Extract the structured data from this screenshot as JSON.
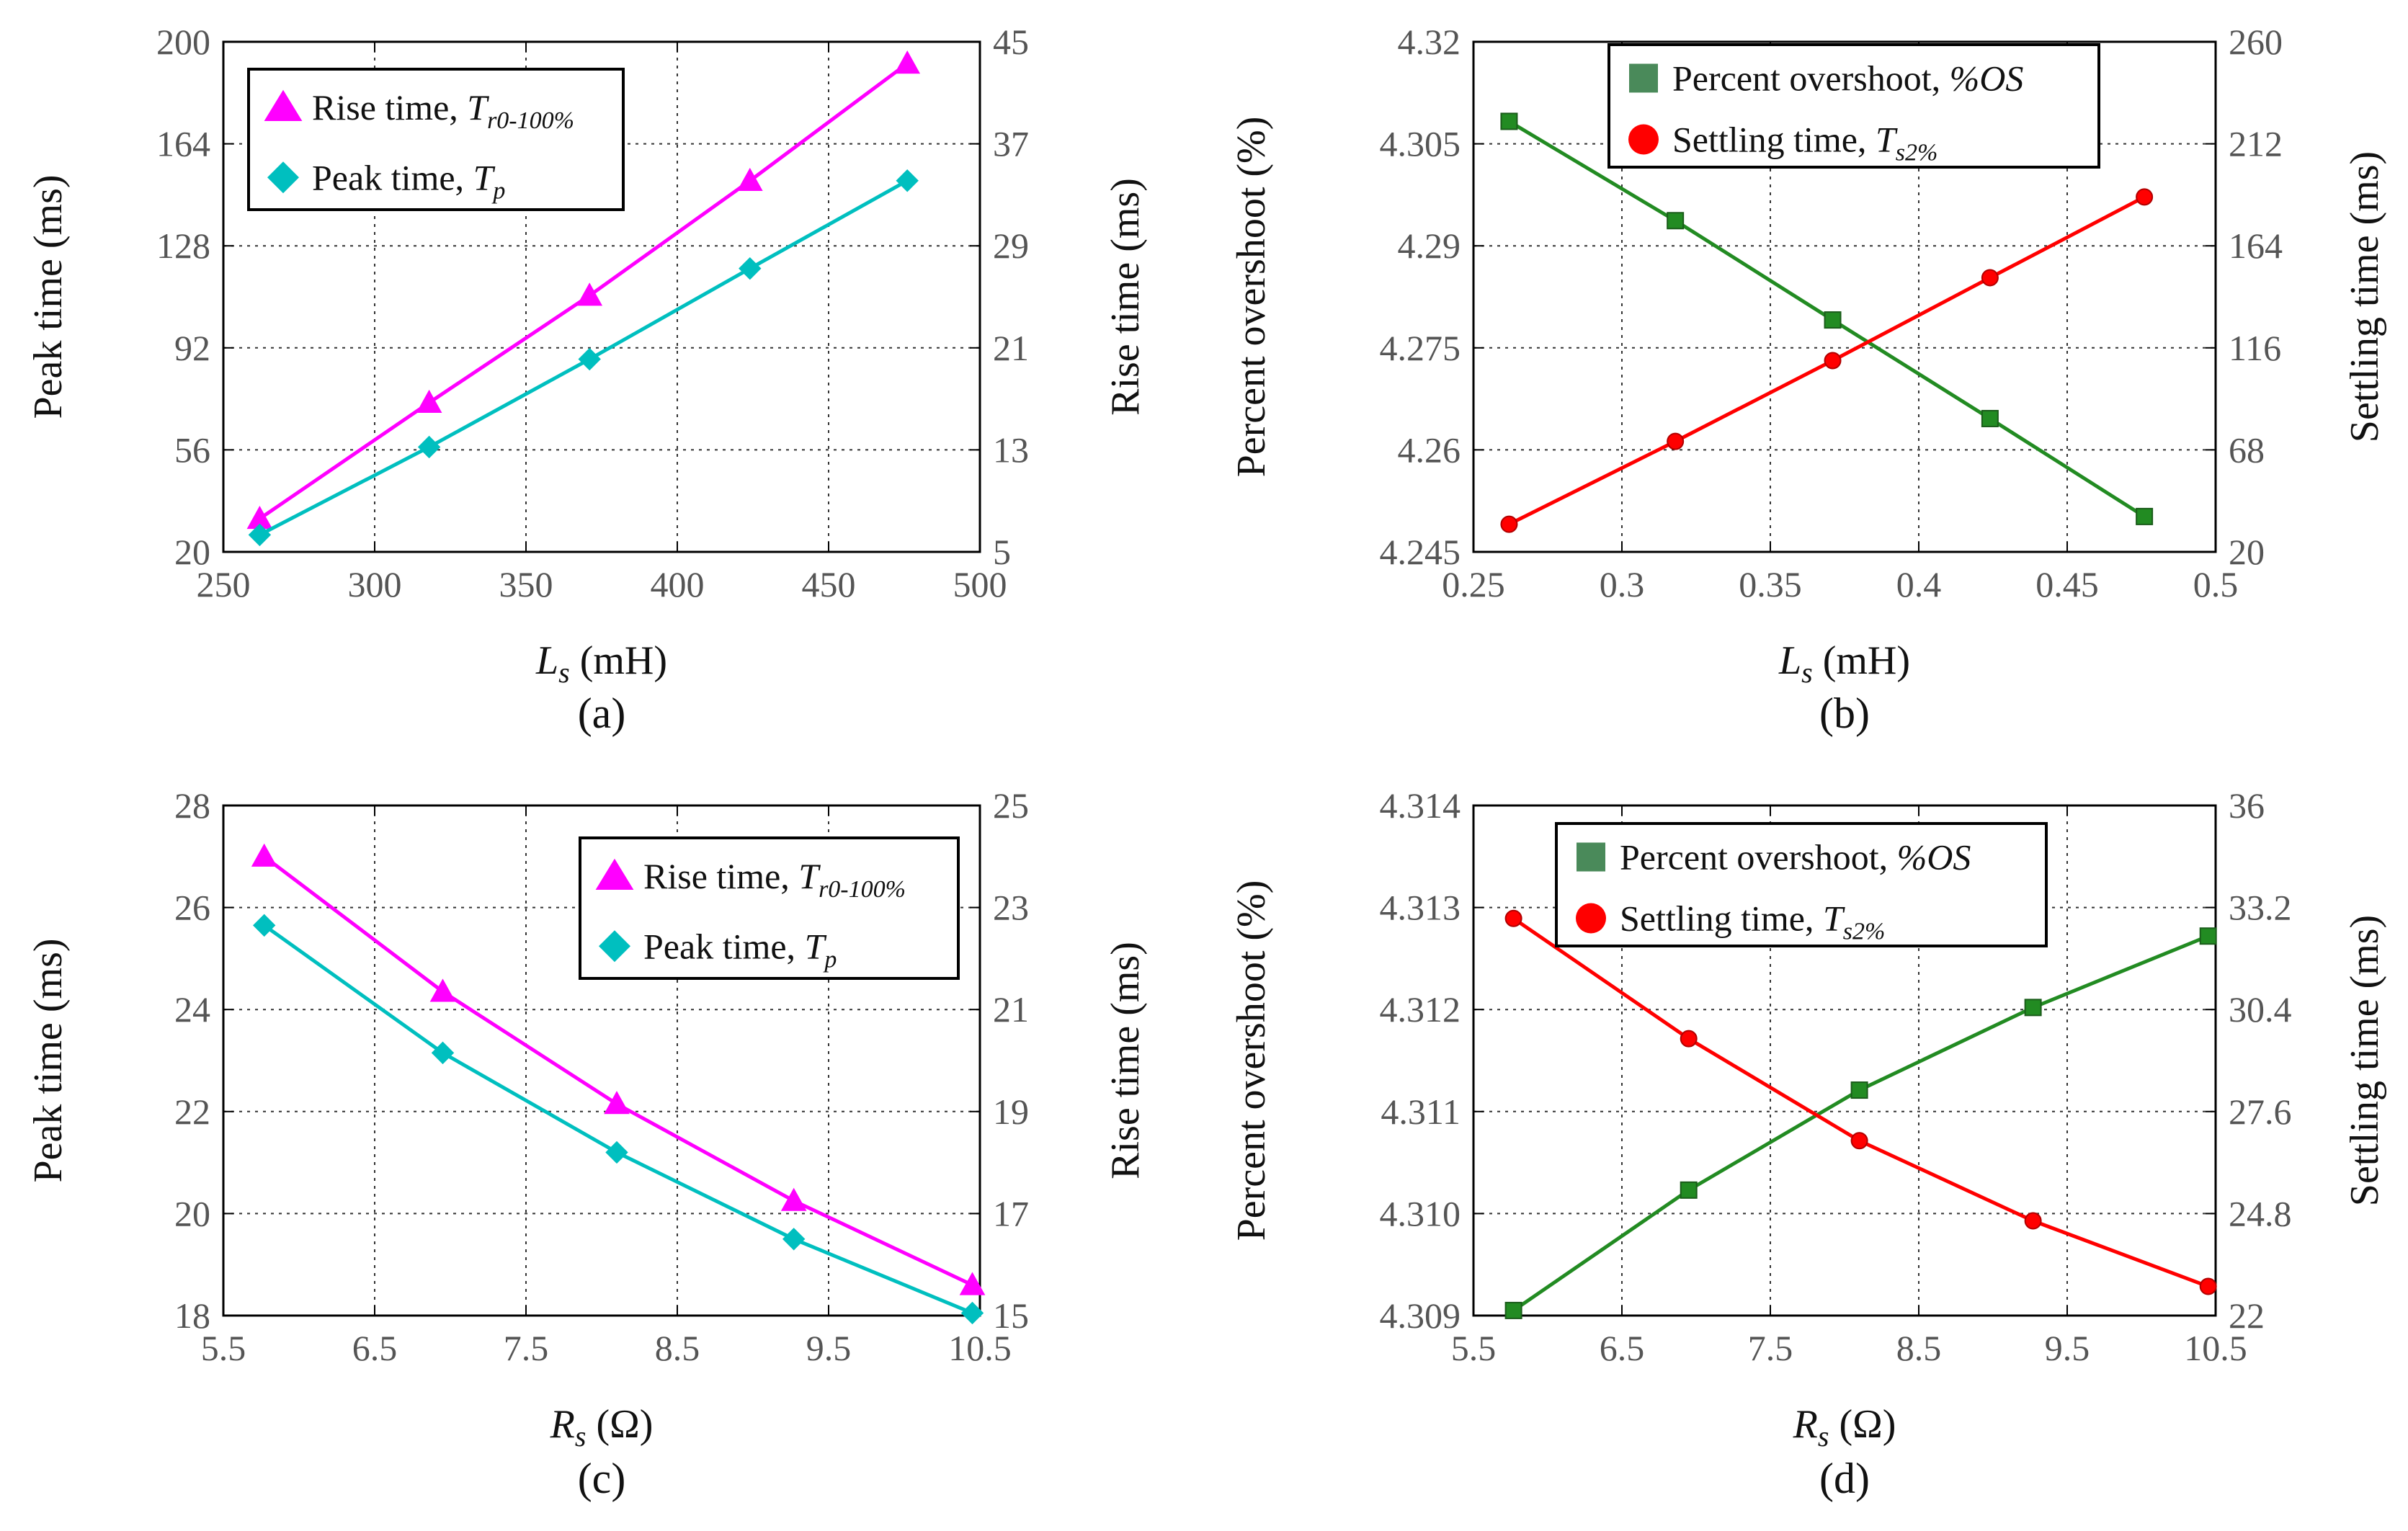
{
  "chart_data": [
    {
      "id": "a",
      "type": "line",
      "panel_label": "(a)",
      "xlabel": {
        "var": "L",
        "sub": "s",
        "unit": " (mH)"
      },
      "ylabel_left": "Peak time (ms)",
      "ylabel_right": "Rise time (ms)",
      "xlim": [
        250,
        500
      ],
      "xticks": [
        250,
        300,
        350,
        400,
        450,
        500
      ],
      "ylim_left": [
        20,
        200
      ],
      "yticks_left": [
        20,
        56,
        92,
        128,
        164,
        200
      ],
      "ylim_right": [
        5,
        45
      ],
      "yticks_right": [
        5,
        13,
        21,
        29,
        37,
        45
      ],
      "grid": true,
      "legend_position": "top-left",
      "series": [
        {
          "name": "Rise time,",
          "symbol": "T",
          "symbol_sub": "r0-100%",
          "axis": "right",
          "color": "#ff00ff",
          "marker": "triangle",
          "x": [
            262,
            318,
            371,
            424,
            476
          ],
          "values": [
            7.6,
            16.7,
            25.1,
            34.1,
            43.3
          ]
        },
        {
          "name": "Peak time,",
          "symbol": "T",
          "symbol_sub": "p",
          "axis": "left",
          "color": "#00bfbf",
          "marker": "diamond",
          "x": [
            262,
            318,
            371,
            424,
            476
          ],
          "values": [
            26,
            57,
            88,
            120,
            151
          ]
        }
      ]
    },
    {
      "id": "b",
      "type": "line",
      "panel_label": "(b)",
      "xlabel": {
        "var": "L",
        "sub": "s",
        "unit": " (mH)"
      },
      "ylabel_left": "Percent overshoot (%)",
      "ylabel_right": "Settling time (ms)",
      "xlim": [
        0.25,
        0.5
      ],
      "xticks": [
        0.25,
        0.3,
        0.35,
        0.4,
        0.45,
        0.5
      ],
      "xtick_labels": [
        "0.25",
        "0.3",
        "0.35",
        "0.4",
        "0.45",
        "0.5"
      ],
      "ylim_left": [
        4.245,
        4.32
      ],
      "yticks_left": [
        4.245,
        4.26,
        4.275,
        4.29,
        4.305,
        4.32
      ],
      "ytick_labels_left": [
        "4.245",
        "4.26",
        "4.275",
        "4.29",
        "4.305",
        "4.32"
      ],
      "ylim_right": [
        20,
        260
      ],
      "yticks_right": [
        20,
        68,
        116,
        164,
        212,
        260
      ],
      "grid": true,
      "legend_position": "top-center",
      "series": [
        {
          "name": "Percent overshoot,",
          "symbol": "%OS",
          "symbol_sub": "",
          "axis": "left",
          "color": "#228b22",
          "marker": "square",
          "x": [
            0.262,
            0.318,
            0.371,
            0.424,
            0.476
          ],
          "values": [
            4.3083,
            4.2937,
            4.2791,
            4.2646,
            4.2502
          ]
        },
        {
          "name": "Settling time,",
          "symbol": "T",
          "symbol_sub": "s2%",
          "axis": "right",
          "color": "#ff0000",
          "marker": "circle",
          "x": [
            0.262,
            0.318,
            0.371,
            0.424,
            0.476
          ],
          "values": [
            33,
            72,
            110,
            149,
            187
          ]
        }
      ]
    },
    {
      "id": "c",
      "type": "line",
      "panel_label": "(c)",
      "xlabel": {
        "var": "R",
        "sub": "s",
        "unit": " (Ω)"
      },
      "ylabel_left": "Peak time (ms)",
      "ylabel_right": "Rise time (ms)",
      "xlim": [
        5.5,
        10.5
      ],
      "xticks": [
        5.5,
        6.5,
        7.5,
        8.5,
        9.5,
        10.5
      ],
      "xtick_labels": [
        "5.5",
        "6.5",
        "7.5",
        "8.5",
        "9.5",
        "10.5"
      ],
      "ylim_left": [
        18,
        28
      ],
      "yticks_left": [
        18,
        20,
        22,
        24,
        26,
        28
      ],
      "ylim_right": [
        15,
        25
      ],
      "yticks_right": [
        15,
        17,
        19,
        21,
        23,
        25
      ],
      "grid": true,
      "legend_position": "top-right",
      "series": [
        {
          "name": "Rise time,",
          "symbol": "T",
          "symbol_sub": "r0-100%",
          "axis": "right",
          "color": "#ff00ff",
          "marker": "triangle",
          "x": [
            5.77,
            6.95,
            8.1,
            9.27,
            10.45
          ],
          "values": [
            24.0,
            21.35,
            19.15,
            17.25,
            15.6
          ]
        },
        {
          "name": "Peak time,",
          "symbol": "T",
          "symbol_sub": "p",
          "axis": "left",
          "color": "#00bfbf",
          "marker": "diamond",
          "x": [
            5.77,
            6.95,
            8.1,
            9.27,
            10.45
          ],
          "values": [
            25.65,
            23.15,
            21.2,
            19.5,
            18.05
          ]
        }
      ]
    },
    {
      "id": "d",
      "type": "line",
      "panel_label": "(d)",
      "xlabel": {
        "var": "R",
        "sub": "s",
        "unit": " (Ω)"
      },
      "ylabel_left": "Percent overshoot (%)",
      "ylabel_right": "Settling time (ms)",
      "xlim": [
        5.5,
        10.5
      ],
      "xticks": [
        5.5,
        6.5,
        7.5,
        8.5,
        9.5,
        10.5
      ],
      "xtick_labels": [
        "5.5",
        "6.5",
        "7.5",
        "8.5",
        "9.5",
        "10.5"
      ],
      "ylim_left": [
        4.309,
        4.314
      ],
      "yticks_left": [
        4.309,
        4.31,
        4.311,
        4.312,
        4.313,
        4.314
      ],
      "ytick_labels_left": [
        "4.309",
        "4.310",
        "4.311",
        "4.312",
        "4.313",
        "4.314"
      ],
      "ylim_right": [
        22,
        36
      ],
      "yticks_right": [
        22,
        24.8,
        27.6,
        30.4,
        33.2,
        36
      ],
      "ytick_labels_right": [
        "22",
        "24.8",
        "27.6",
        "30.4",
        "33.2",
        "36"
      ],
      "grid": true,
      "legend_position": "top-center",
      "series": [
        {
          "name": "Percent overshoot,",
          "symbol": "%OS",
          "symbol_sub": "",
          "axis": "left",
          "color": "#228b22",
          "marker": "square",
          "x": [
            5.77,
            6.95,
            8.1,
            9.27,
            10.45
          ],
          "values": [
            4.30905,
            4.31023,
            4.31121,
            4.31202,
            4.31272
          ]
        },
        {
          "name": "Settling time,",
          "symbol": "T",
          "symbol_sub": "s2%",
          "axis": "right",
          "color": "#ff0000",
          "marker": "circle",
          "x": [
            5.77,
            6.95,
            8.1,
            9.27,
            10.45
          ],
          "values": [
            32.9,
            29.6,
            26.8,
            24.6,
            22.8
          ]
        }
      ]
    }
  ]
}
